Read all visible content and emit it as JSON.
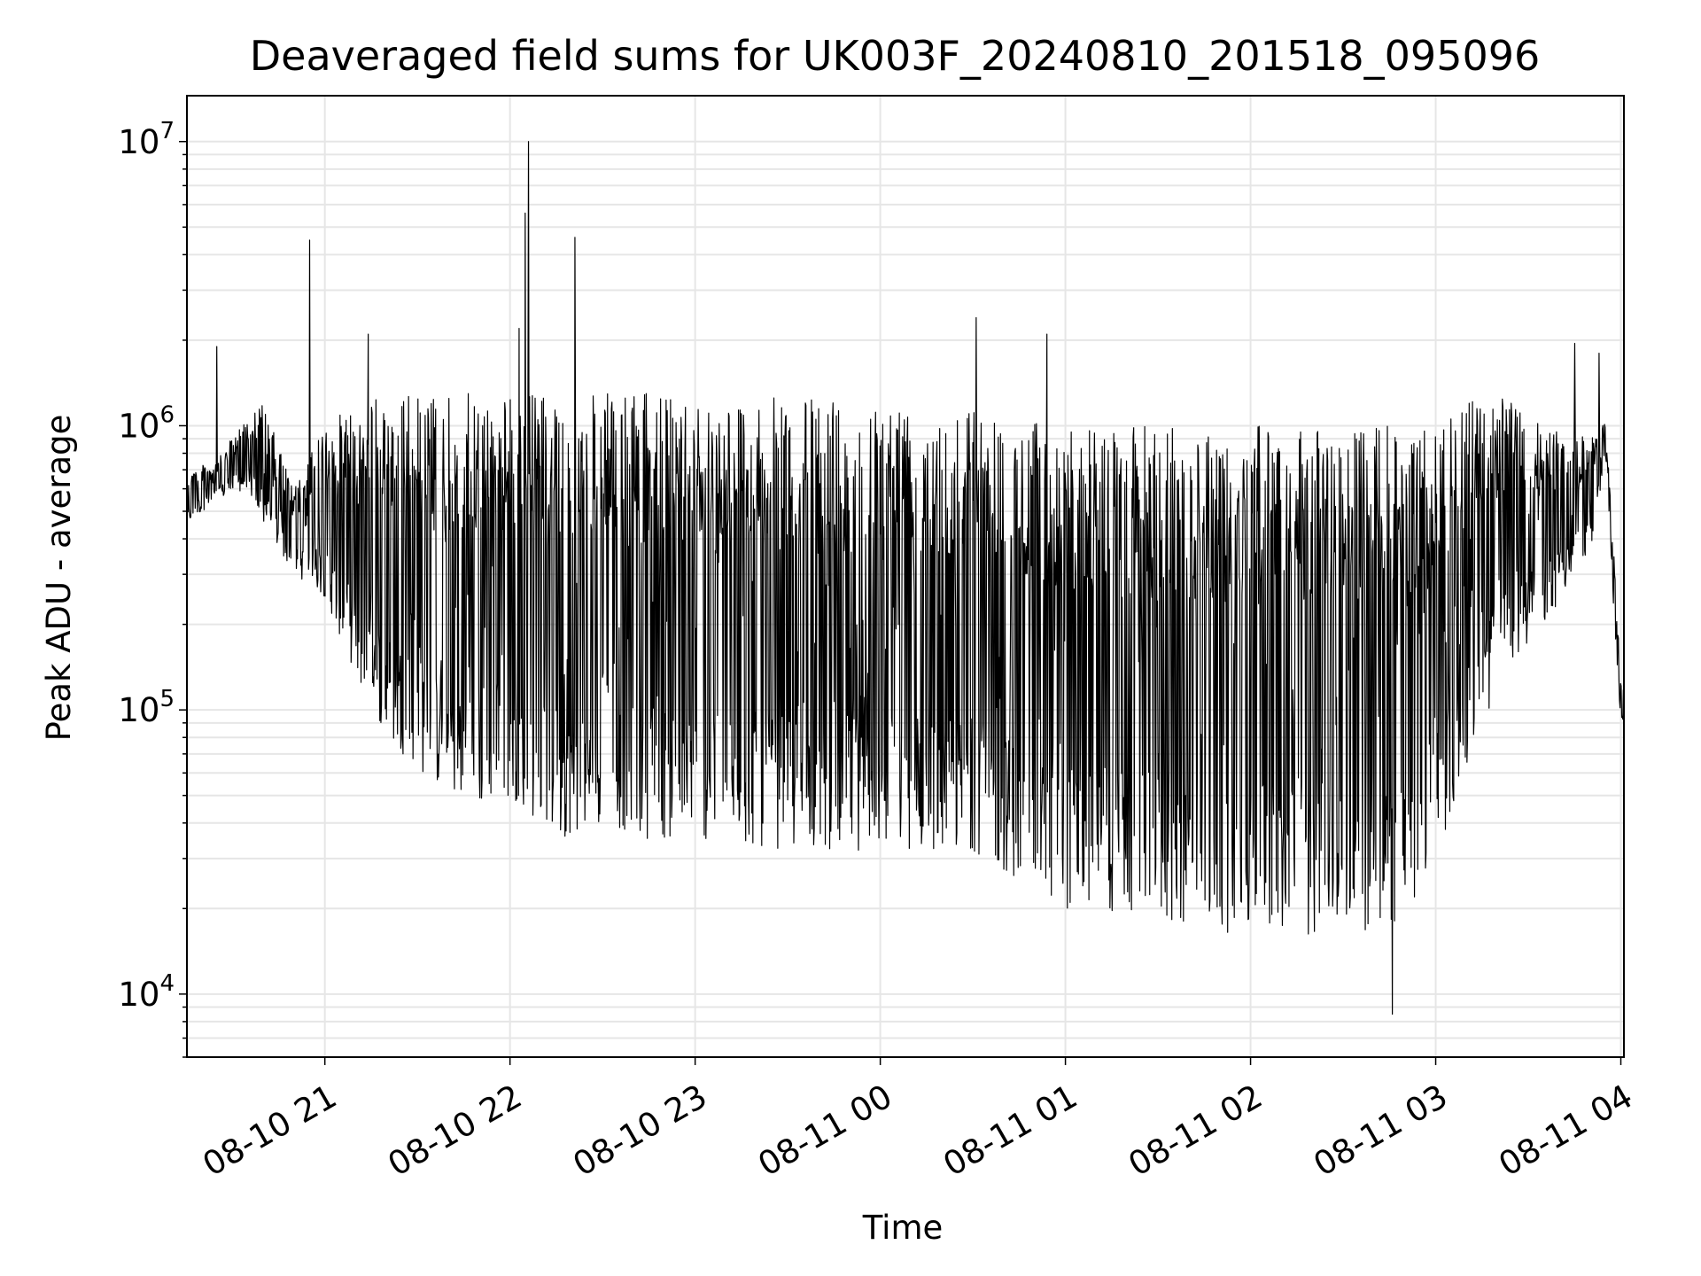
{
  "chart_data": {
    "type": "line",
    "title": "Deaveraged field sums for UK003F_20240810_201518_095096",
    "xlabel": "Time",
    "ylabel": "Peak ADU - average",
    "yscale": "log",
    "ylim": [
      6000,
      14500000
    ],
    "xlim": [
      "2024-08-10 20:15:18",
      "2024-08-11 04:01:00"
    ],
    "grid": true,
    "x_ticks": [
      {
        "t": "2024-08-10 21:00",
        "label": "08-10 21"
      },
      {
        "t": "2024-08-10 22:00",
        "label": "08-10 22"
      },
      {
        "t": "2024-08-10 23:00",
        "label": "08-10 23"
      },
      {
        "t": "2024-08-11 00:00",
        "label": "08-11 00"
      },
      {
        "t": "2024-08-11 01:00",
        "label": "08-11 01"
      },
      {
        "t": "2024-08-11 02:00",
        "label": "08-11 02"
      },
      {
        "t": "2024-08-11 03:00",
        "label": "08-11 03"
      },
      {
        "t": "2024-08-11 04:00",
        "label": "08-11 04"
      }
    ],
    "y_ticks": [
      {
        "value": 10000,
        "base": "10",
        "exp": "4"
      },
      {
        "value": 100000,
        "base": "10",
        "exp": "5"
      },
      {
        "value": 1000000,
        "base": "10",
        "exp": "6"
      },
      {
        "value": 10000000,
        "base": "10",
        "exp": "7"
      }
    ],
    "series_color": "#000000",
    "envelope": [
      {
        "t": "2024-08-10 20:15",
        "hi": 700000,
        "lo": 450000
      },
      {
        "t": "2024-08-10 20:25",
        "hi": 750000,
        "lo": 550000
      },
      {
        "t": "2024-08-10 20:35",
        "hi": 1100000,
        "lo": 600000
      },
      {
        "t": "2024-08-10 20:40",
        "hi": 1200000,
        "lo": 450000
      },
      {
        "t": "2024-08-10 20:50",
        "hi": 600000,
        "lo": 300000
      },
      {
        "t": "2024-08-10 21:00",
        "hi": 1000000,
        "lo": 250000
      },
      {
        "t": "2024-08-10 21:10",
        "hi": 1200000,
        "lo": 130000
      },
      {
        "t": "2024-08-10 21:20",
        "hi": 1300000,
        "lo": 80000
      },
      {
        "t": "2024-08-10 21:35",
        "hi": 1300000,
        "lo": 55000
      },
      {
        "t": "2024-08-10 21:50",
        "hi": 1300000,
        "lo": 45000
      },
      {
        "t": "2024-08-10 22:00",
        "hi": 1300000,
        "lo": 50000
      },
      {
        "t": "2024-08-10 22:15",
        "hi": 1300000,
        "lo": 35000
      },
      {
        "t": "2024-08-10 22:30",
        "hi": 1300000,
        "lo": 40000
      },
      {
        "t": "2024-08-10 22:45",
        "hi": 1300000,
        "lo": 35000
      },
      {
        "t": "2024-08-10 23:00",
        "hi": 1300000,
        "lo": 35000
      },
      {
        "t": "2024-08-10 23:30",
        "hi": 1250000,
        "lo": 32000
      },
      {
        "t": "2024-08-11 00:00",
        "hi": 1250000,
        "lo": 32000
      },
      {
        "t": "2024-08-11 00:30",
        "hi": 1200000,
        "lo": 32000
      },
      {
        "t": "2024-08-11 00:45",
        "hi": 1050000,
        "lo": 25000
      },
      {
        "t": "2024-08-11 01:00",
        "hi": 1000000,
        "lo": 20000
      },
      {
        "t": "2024-08-11 01:30",
        "hi": 1000000,
        "lo": 18000
      },
      {
        "t": "2024-08-11 02:00",
        "hi": 1000000,
        "lo": 16000
      },
      {
        "t": "2024-08-11 02:30",
        "hi": 1000000,
        "lo": 16000
      },
      {
        "t": "2024-08-11 02:50",
        "hi": 1000000,
        "lo": 18000
      },
      {
        "t": "2024-08-11 03:00",
        "hi": 1000000,
        "lo": 30000
      },
      {
        "t": "2024-08-11 03:10",
        "hi": 1200000,
        "lo": 60000
      },
      {
        "t": "2024-08-11 03:20",
        "hi": 1300000,
        "lo": 120000
      },
      {
        "t": "2024-08-11 03:35",
        "hi": 1000000,
        "lo": 200000
      },
      {
        "t": "2024-08-11 03:50",
        "hi": 900000,
        "lo": 350000
      },
      {
        "t": "2024-08-11 03:55",
        "hi": 1050000,
        "lo": 750000
      },
      {
        "t": "2024-08-11 03:57",
        "hi": 500000,
        "lo": 300000
      },
      {
        "t": "2024-08-11 04:00",
        "hi": 130000,
        "lo": 90000
      },
      {
        "t": "2024-08-11 04:01",
        "hi": 120000,
        "lo": 80000
      }
    ],
    "spikes": [
      {
        "t": "2024-08-10 20:55",
        "value": 4500000
      },
      {
        "t": "2024-08-10 22:03",
        "value": 2200000
      },
      {
        "t": "2024-08-10 22:05",
        "value": 5600000
      },
      {
        "t": "2024-08-10 22:06",
        "value": 10000000
      },
      {
        "t": "2024-08-10 22:21",
        "value": 4600000
      },
      {
        "t": "2024-08-11 00:31",
        "value": 2400000
      },
      {
        "t": "2024-08-11 00:54",
        "value": 2100000
      },
      {
        "t": "2024-08-10 20:25",
        "value": 1900000
      },
      {
        "t": "2024-08-10 21:14",
        "value": 2100000
      },
      {
        "t": "2024-08-11 03:45",
        "value": 1950000
      },
      {
        "t": "2024-08-11 03:53",
        "value": 1800000
      },
      {
        "t": "2024-08-11 02:46",
        "value": 8500
      }
    ]
  }
}
